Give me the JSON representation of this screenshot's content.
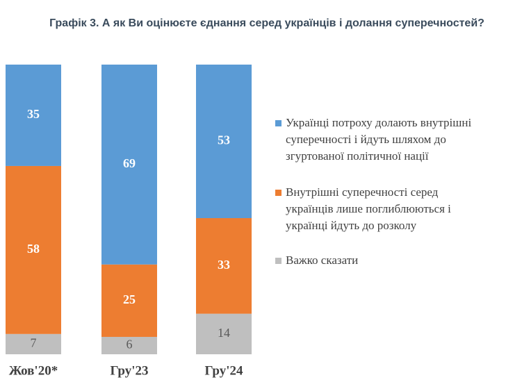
{
  "chart_data": {
    "type": "stacked-bar",
    "title": "Графік 3. А як Ви оцінюєте єднання серед українців і долання суперечностей?",
    "categories": [
      "Жов'20*",
      "Гру'23",
      "Гру'24"
    ],
    "series": [
      {
        "name": "Українці потроху долають внутрішні суперечності і йдуть шляхом до згуртованої політичної нації",
        "color": "#5b9bd5",
        "values": [
          35,
          69,
          53
        ]
      },
      {
        "name": "Внутрішні суперечності серед українців лише поглиблюються і українці йдуть до розколу",
        "color": "#ed7d31",
        "values": [
          58,
          25,
          33
        ]
      },
      {
        "name": "Важко сказати",
        "color": "#bfbfbf",
        "values": [
          7,
          6,
          14
        ]
      }
    ]
  }
}
